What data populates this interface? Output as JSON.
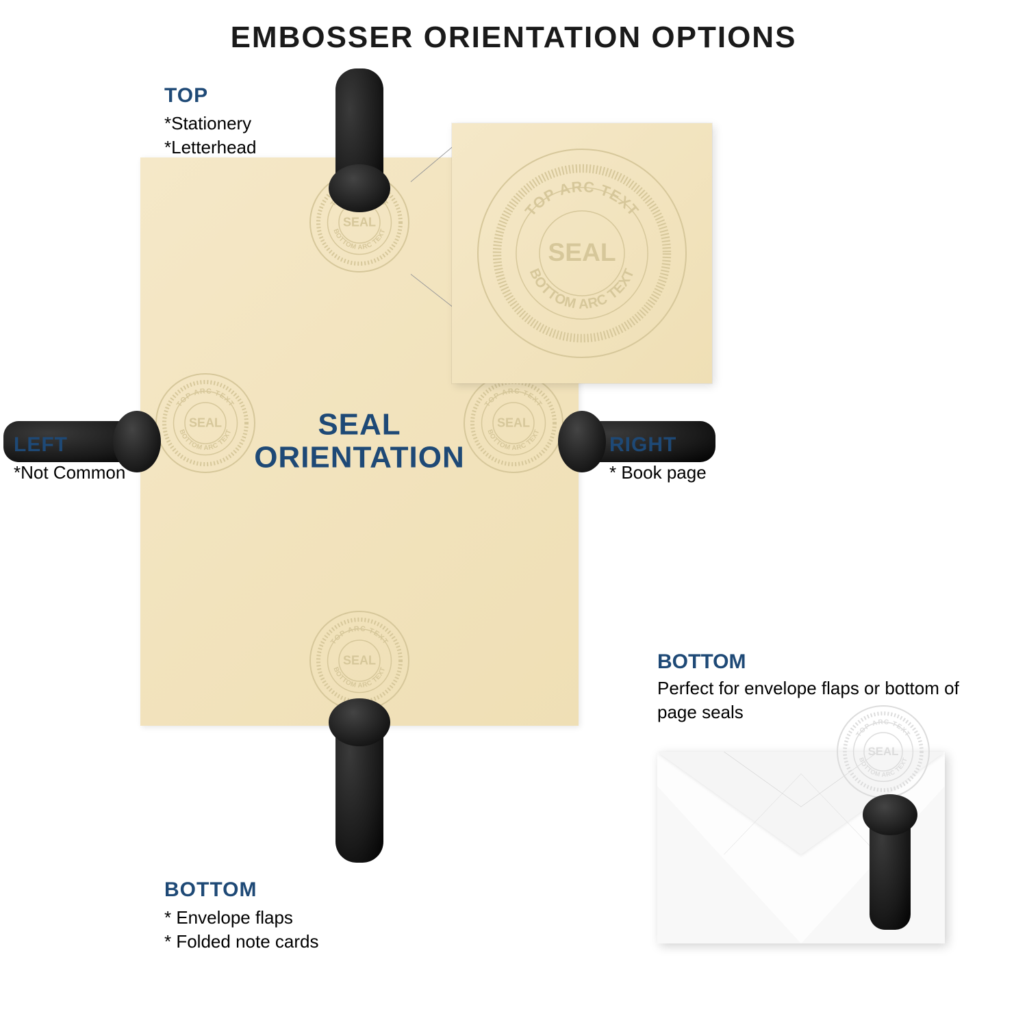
{
  "title": "EMBOSSER ORIENTATION OPTIONS",
  "colors": {
    "heading": "#1e4976",
    "text": "#000000",
    "paper": "#f2e3bd",
    "envelope": "#fdfdfd",
    "embosser": "#1a1a1a",
    "background": "#ffffff"
  },
  "paper": {
    "center_line1": "SEAL",
    "center_line2": "ORIENTATION"
  },
  "seal": {
    "top_arc": "TOP ARC TEXT",
    "bottom_arc": "BOTTOM ARC TEXT",
    "center": "SEAL"
  },
  "labels": {
    "top": {
      "title": "TOP",
      "lines": [
        "*Stationery",
        "*Letterhead"
      ]
    },
    "left": {
      "title": "LEFT",
      "lines": [
        "*Not Common"
      ]
    },
    "right": {
      "title": "RIGHT",
      "lines": [
        "* Book page"
      ]
    },
    "bottom": {
      "title": "BOTTOM",
      "lines": [
        "* Envelope flaps",
        "* Folded note cards"
      ]
    }
  },
  "envelope_callout": {
    "title": "BOTTOM",
    "desc": "Perfect for envelope flaps or bottom of page seals"
  }
}
